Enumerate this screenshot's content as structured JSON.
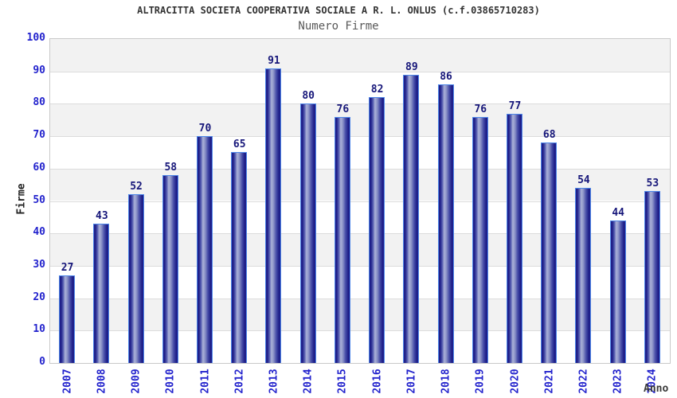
{
  "chart_data": {
    "type": "bar",
    "title": "ALTRACITTA SOCIETA COOPERATIVA SOCIALE A R. L. ONLUS (c.f.03865710283)",
    "subtitle": "Numero Firme",
    "xlabel": "Anno",
    "ylabel": "Firme",
    "categories": [
      "2007",
      "2008",
      "2009",
      "2010",
      "2011",
      "2012",
      "2013",
      "2014",
      "2015",
      "2016",
      "2017",
      "2018",
      "2019",
      "2020",
      "2021",
      "2022",
      "2023",
      "2024"
    ],
    "values": [
      27,
      43,
      52,
      58,
      70,
      65,
      91,
      80,
      76,
      82,
      89,
      86,
      76,
      77,
      68,
      54,
      44,
      53
    ],
    "ylim": [
      0,
      100
    ],
    "ytick_step": 10,
    "grid": "horizontal-bands-alternating",
    "legend": "none",
    "value_labels": "above-bars",
    "x_tick_rotation_deg": -90,
    "colors": {
      "bar_dark": "#1b1b86",
      "bar_dark_edge": "#23238e",
      "bar_mid": "#555cb0",
      "bar_highlight": "#abb2d8",
      "bar_border": "#4d86e8",
      "value_label": "#17177a",
      "tick_label": "#2323cd",
      "band_gray": "#f2f2f2",
      "band_white": "#ffffff",
      "gridline": "#dcdcdc",
      "plot_border": "#c9c9c9",
      "title": "#333333",
      "subtitle": "#595959",
      "axis_title": "#333333",
      "background": "#ffffff"
    }
  }
}
